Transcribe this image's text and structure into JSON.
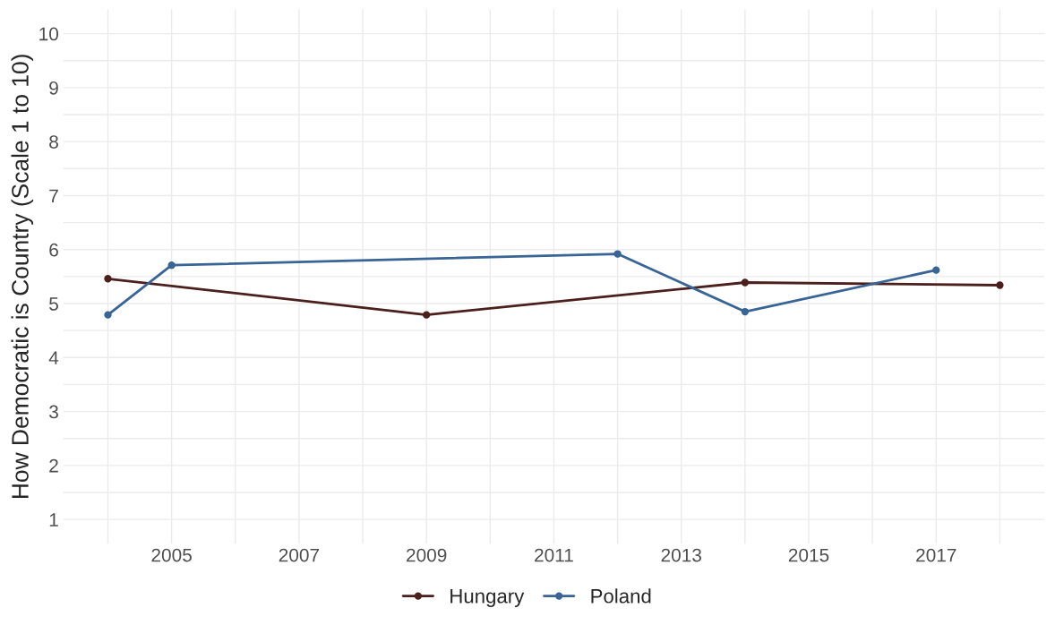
{
  "chart_data": {
    "type": "line",
    "ylabel": "How Democratic is Country (Scale 1 to 10)",
    "series": [
      {
        "name": "Hungary",
        "color": "#4b1f1c",
        "x": [
          2004,
          2009,
          2014,
          2018
        ],
        "values": [
          5.46,
          4.79,
          5.39,
          5.34
        ]
      },
      {
        "name": "Poland",
        "color": "#386595",
        "x": [
          2004,
          2005,
          2012,
          2014,
          2017
        ],
        "values": [
          4.79,
          5.71,
          5.92,
          4.85,
          5.62
        ]
      }
    ],
    "xlim": [
      2003.3,
      2018.7
    ],
    "xticks": [
      {
        "value": 2004,
        "label": null
      },
      2005,
      {
        "value": 2006,
        "label": null
      },
      2007,
      {
        "value": 2008,
        "label": null
      },
      2009,
      {
        "value": 2010,
        "label": null
      },
      2011,
      {
        "value": 2012,
        "label": null
      },
      2013,
      {
        "value": 2014,
        "label": null
      },
      2015,
      {
        "value": 2016,
        "label": null
      },
      2017,
      {
        "value": 2018,
        "label": null
      }
    ],
    "ylim": [
      0.55,
      10.45
    ],
    "yticks": [
      1,
      {
        "value": 1.5,
        "label": null
      },
      2,
      {
        "value": 2.5,
        "label": null
      },
      3,
      {
        "value": 3.5,
        "label": null
      },
      4,
      {
        "value": 4.5,
        "label": null
      },
      5,
      {
        "value": 5.5,
        "label": null
      },
      6,
      {
        "value": 6.5,
        "label": null
      },
      7,
      {
        "value": 7.5,
        "label": null
      },
      8,
      {
        "value": 8.5,
        "label": null
      },
      9,
      {
        "value": 9.5,
        "label": null
      },
      10
    ],
    "grid": true,
    "legend": "bottom",
    "marker": "circle",
    "line_style": "solid"
  }
}
